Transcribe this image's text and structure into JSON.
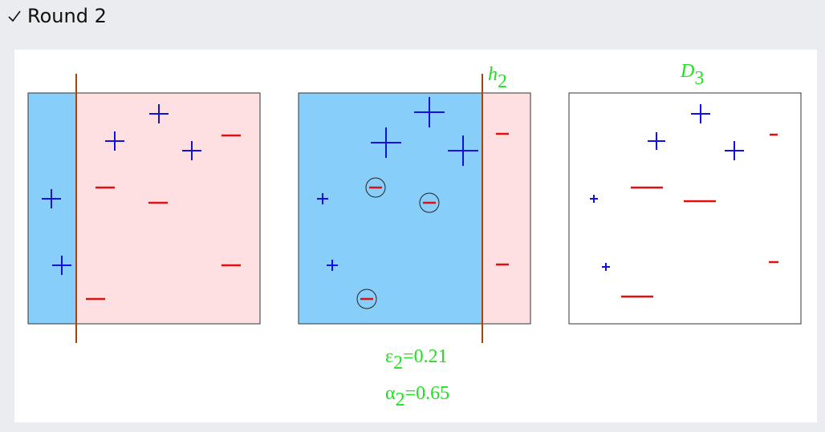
{
  "header": {
    "title": "Round 2"
  },
  "figure": {
    "hypothesis_label": {
      "base": "h",
      "sub": "2"
    },
    "distribution_label": {
      "base": "D",
      "sub": "3"
    },
    "error": {
      "symbol": "ε",
      "sub": "2",
      "text": "=0.21"
    },
    "weight": {
      "symbol": "α",
      "sub": "2",
      "text": "=0.65"
    }
  }
}
